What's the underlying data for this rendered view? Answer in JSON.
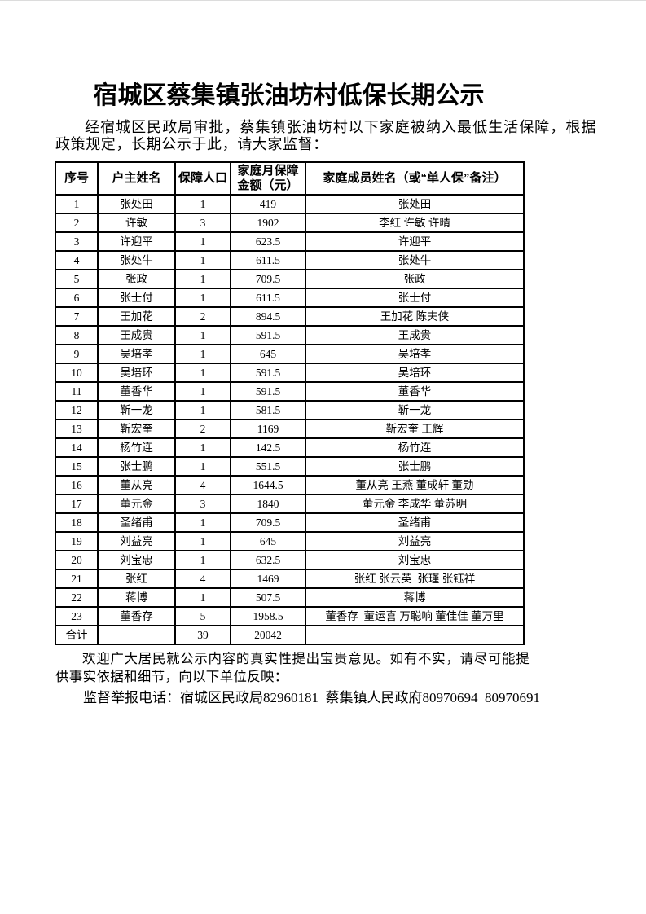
{
  "page": {
    "title": "宿城区蔡集镇张油坊村低保长期公示",
    "intro": "经宿城区民政局审批，蔡集镇张油坊村以下家庭被纳入最低生活保障，根据政策规定，长期公示于此，请大家监督：",
    "feedback": "欢迎广大居民就公示内容的真实性提出宝贵意见。如有不实，请尽可能提供事实依据和细节，向以下单位反映：",
    "hotline": "监督举报电话：宿城区民政局82960181  蔡集镇人民政府80970694  80970691"
  },
  "table": {
    "headers": [
      "序号",
      "户主姓名",
      "保障人口",
      "家庭月保障金额（元）",
      "家庭成员姓名（或“单人保”备注）"
    ],
    "rows": [
      {
        "no": "1",
        "name": "张处田",
        "pop": "1",
        "amount": "419",
        "members": "张处田"
      },
      {
        "no": "2",
        "name": "许敏",
        "pop": "3",
        "amount": "1902",
        "members": "李红 许敏 许晴"
      },
      {
        "no": "3",
        "name": "许迎平",
        "pop": "1",
        "amount": "623.5",
        "members": "许迎平"
      },
      {
        "no": "4",
        "name": "张处牛",
        "pop": "1",
        "amount": "611.5",
        "members": "张处牛"
      },
      {
        "no": "5",
        "name": "张政",
        "pop": "1",
        "amount": "709.5",
        "members": "张政"
      },
      {
        "no": "6",
        "name": "张士付",
        "pop": "1",
        "amount": "611.5",
        "members": "张士付"
      },
      {
        "no": "7",
        "name": "王加花",
        "pop": "2",
        "amount": "894.5",
        "members": "王加花 陈夫侠"
      },
      {
        "no": "8",
        "name": "王成贵",
        "pop": "1",
        "amount": "591.5",
        "members": "王成贵"
      },
      {
        "no": "9",
        "name": "吴培孝",
        "pop": "1",
        "amount": "645",
        "members": "吴培孝"
      },
      {
        "no": "10",
        "name": "吴培环",
        "pop": "1",
        "amount": "591.5",
        "members": "吴培环"
      },
      {
        "no": "11",
        "name": "董香华",
        "pop": "1",
        "amount": "591.5",
        "members": "董香华"
      },
      {
        "no": "12",
        "name": "靳一龙",
        "pop": "1",
        "amount": "581.5",
        "members": "靳一龙"
      },
      {
        "no": "13",
        "name": "靳宏奎",
        "pop": "2",
        "amount": "1169",
        "members": "靳宏奎 王辉"
      },
      {
        "no": "14",
        "name": "杨竹连",
        "pop": "1",
        "amount": "142.5",
        "members": "杨竹连"
      },
      {
        "no": "15",
        "name": "张士鹏",
        "pop": "1",
        "amount": "551.5",
        "members": "张士鹏"
      },
      {
        "no": "16",
        "name": "董从亮",
        "pop": "4",
        "amount": "1644.5",
        "members": "董从亮 王燕 董成轩 董勋"
      },
      {
        "no": "17",
        "name": "董元金",
        "pop": "3",
        "amount": "1840",
        "members": "董元金 李成华 董苏明"
      },
      {
        "no": "18",
        "name": "圣绪甫",
        "pop": "1",
        "amount": "709.5",
        "members": "圣绪甫"
      },
      {
        "no": "19",
        "name": "刘益亮",
        "pop": "1",
        "amount": "645",
        "members": "刘益亮"
      },
      {
        "no": "20",
        "name": "刘宝忠",
        "pop": "1",
        "amount": "632.5",
        "members": "刘宝忠"
      },
      {
        "no": "21",
        "name": "张红",
        "pop": "4",
        "amount": "1469",
        "members": "张红 张云英  张瑾 张钰祥"
      },
      {
        "no": "22",
        "name": "蒋博",
        "pop": "1",
        "amount": "507.5",
        "members": "蒋博"
      },
      {
        "no": "23",
        "name": "董香存",
        "pop": "5",
        "amount": "1958.5",
        "members": "董香存  董运喜 万聪响 董佳佳 董万里"
      }
    ],
    "total": {
      "label": "合计",
      "pop": "39",
      "amount": "20042"
    }
  }
}
